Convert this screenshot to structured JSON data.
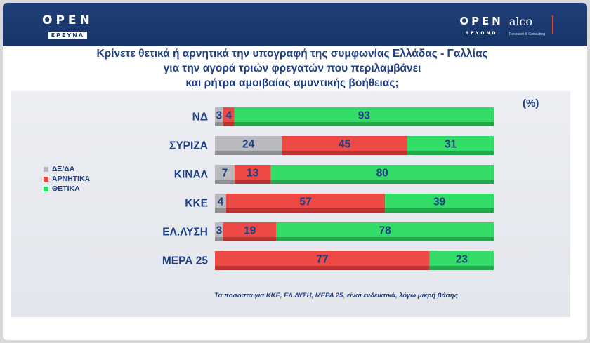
{
  "header": {
    "left_brand": "OPEN",
    "left_brand_sub": "ΕΡΕΥΝΑ",
    "right_brand": "OPEN",
    "right_brand_sub": "BEYOND",
    "partner": "alco",
    "partner_tag": "Research & Consulting"
  },
  "chart_data": {
    "type": "bar",
    "orientation": "horizontal-stacked-100",
    "title_lines": [
      "Κρίνετε θετικά ή αρνητικά την υπογραφή της συμφωνίας Ελλάδας - Γαλλίας",
      "για την αγορά τριών φρεγατών που περιλαμβάνει",
      "και ρήτρα αμοιβαίας αμυντικής βοήθειας;"
    ],
    "unit_label": "(%)",
    "categories": [
      "ΝΔ",
      "ΣΥΡΙΖΑ",
      "ΚΙΝΑΛ",
      "ΚΚΕ",
      "ΕΛ.ΛΥΣΗ",
      "ΜΕΡΑ 25"
    ],
    "series": [
      {
        "name": "ΔΞ/ΔΑ",
        "color": "#b9babd",
        "values": [
          3,
          24,
          7,
          4,
          3,
          0
        ]
      },
      {
        "name": "ΑΡΝΗΤΙΚΑ",
        "color": "#ee4a45",
        "values": [
          4,
          45,
          13,
          57,
          19,
          77
        ]
      },
      {
        "name": "ΘΕΤΙΚΑ",
        "color": "#33dc66",
        "values": [
          93,
          31,
          80,
          39,
          78,
          23
        ]
      }
    ],
    "xlim": [
      0,
      100
    ],
    "legend_position": "left",
    "footnote": "Τα ποσοστά για ΚΚΕ, ΕΛ.ΛΥΣΗ, ΜΕΡΑ 25, είναι ενδεικτικά, λόγω μικρή βάσης"
  }
}
